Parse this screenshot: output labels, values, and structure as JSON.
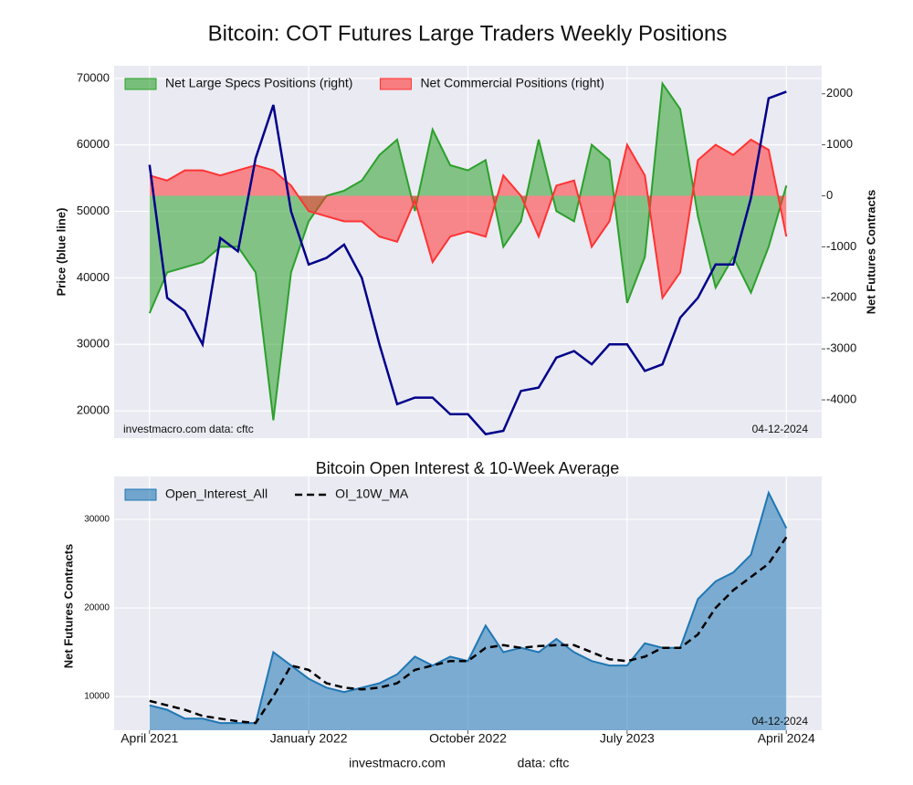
{
  "footer": [
    "investmacro.com",
    "data: cftc"
  ],
  "chart_data": [
    {
      "type": "line",
      "title": "Bitcoin: COT Futures Large Traders Weekly Positions",
      "ylabel": "Price (blue line)",
      "y2label": "Net Futures Contracts",
      "x": [
        "2021-04",
        "2021-05",
        "2021-06",
        "2021-07",
        "2021-08",
        "2021-09",
        "2021-10",
        "2021-11",
        "2021-12",
        "2022-01",
        "2022-02",
        "2022-03",
        "2022-04",
        "2022-05",
        "2022-06",
        "2022-07",
        "2022-08",
        "2022-09",
        "2022-10",
        "2022-11",
        "2022-12",
        "2023-01",
        "2023-02",
        "2023-03",
        "2023-04",
        "2023-05",
        "2023-06",
        "2023-07",
        "2023-08",
        "2023-09",
        "2023-10",
        "2023-11",
        "2023-12",
        "2024-01",
        "2024-02",
        "2024-03",
        "2024-04"
      ],
      "xlim": [
        "2021-02",
        "2024-06"
      ],
      "ylim": [
        15900,
        71900
      ],
      "yticks": [
        20000,
        30000,
        40000,
        50000,
        60000,
        70000
      ],
      "y2lim": [
        -4750,
        2550
      ],
      "y2ticks": [
        -4000,
        -3000,
        -2000,
        -1000,
        0,
        1000,
        2000
      ],
      "grid": true,
      "legend": "upper left",
      "annotations": [
        "investmacro.com   data: cftc",
        "04-12-2024"
      ],
      "series": [
        {
          "name": "Net Large Specs Positions (right)",
          "color": "#2ca02c",
          "style": "area",
          "axis": "y2",
          "values": [
            -2300,
            -1500,
            -1400,
            -1300,
            -1000,
            -1000,
            -1500,
            -4400,
            -1500,
            -500,
            0,
            100,
            300,
            800,
            1100,
            -300,
            1300,
            600,
            500,
            700,
            -1000,
            -500,
            1100,
            -300,
            -500,
            1000,
            700,
            -2100,
            -1200,
            2200,
            1700,
            -400,
            -1800,
            -1200,
            -1900,
            -1000,
            200
          ]
        },
        {
          "name": "Net Commercial Positions (right)",
          "color": "#ff3333",
          "style": "area",
          "axis": "y2",
          "values": [
            400,
            300,
            500,
            500,
            400,
            500,
            600,
            500,
            200,
            -300,
            -400,
            -500,
            -500,
            -800,
            -900,
            -100,
            -1300,
            -800,
            -700,
            -800,
            400,
            0,
            -800,
            200,
            300,
            -1000,
            -500,
            1000,
            400,
            -2000,
            -1500,
            700,
            1000,
            800,
            1100,
            900,
            -800
          ]
        },
        {
          "color": "#00008b",
          "style": "line",
          "values": [
            57000,
            37000,
            35000,
            30000,
            46000,
            44000,
            58000,
            66000,
            50000,
            42000,
            43000,
            45000,
            40000,
            30000,
            21000,
            22000,
            22000,
            19500,
            19500,
            16500,
            17000,
            23000,
            23500,
            28000,
            29000,
            27000,
            30000,
            30000,
            26000,
            27000,
            34000,
            37000,
            42000,
            42000,
            52000,
            67000,
            68000
          ]
        }
      ]
    },
    {
      "type": "area",
      "title": "Bitcoin Open Interest & 10-Week Average",
      "ylabel": "Net Futures Contracts",
      "x": [
        "2021-04",
        "2021-05",
        "2021-06",
        "2021-07",
        "2021-08",
        "2021-09",
        "2021-10",
        "2021-11",
        "2021-12",
        "2022-01",
        "2022-02",
        "2022-03",
        "2022-04",
        "2022-05",
        "2022-06",
        "2022-07",
        "2022-08",
        "2022-09",
        "2022-10",
        "2022-11",
        "2022-12",
        "2023-01",
        "2023-02",
        "2023-03",
        "2023-04",
        "2023-05",
        "2023-06",
        "2023-07",
        "2023-08",
        "2023-09",
        "2023-10",
        "2023-11",
        "2023-12",
        "2024-01",
        "2024-02",
        "2024-03",
        "2024-04"
      ],
      "xlim": [
        "2021-02",
        "2024-06"
      ],
      "xticks": [
        {
          "value": "2021-04",
          "label": "April 2021"
        },
        {
          "value": "2022-01",
          "label": "January 2022"
        },
        {
          "value": "2022-10",
          "label": "October 2022"
        },
        {
          "value": "2023-07",
          "label": "July 2023"
        },
        {
          "value": "2024-04",
          "label": "April 2024"
        }
      ],
      "ylim": [
        6190,
        34850
      ],
      "yticks": [
        10000,
        20000,
        30000
      ],
      "grid": true,
      "legend": "upper left",
      "annotations": [
        "04-12-2024"
      ],
      "series": [
        {
          "name": "Open_Interest_All",
          "color": "#1f77b4",
          "style": "area",
          "values": [
            9000,
            8500,
            7500,
            7500,
            7000,
            7000,
            7000,
            15000,
            13500,
            12000,
            11000,
            10500,
            11000,
            11500,
            12500,
            14500,
            13500,
            14500,
            14000,
            18000,
            15000,
            15500,
            15000,
            16500,
            15000,
            14000,
            13500,
            13500,
            16000,
            15500,
            15500,
            21000,
            23000,
            24000,
            26000,
            33000,
            29000
          ]
        },
        {
          "name": "OI_10W_MA",
          "color": "#000000",
          "style": "dashed",
          "values": [
            9500,
            9000,
            8500,
            7800,
            7500,
            7200,
            7000,
            10000,
            13500,
            13000,
            11500,
            11000,
            10800,
            11000,
            11500,
            13000,
            13500,
            14000,
            14000,
            15500,
            15800,
            15500,
            15700,
            15800,
            15800,
            15000,
            14200,
            14000,
            14500,
            15500,
            15500,
            17000,
            20000,
            22000,
            23500,
            25000,
            28000
          ]
        }
      ]
    }
  ]
}
